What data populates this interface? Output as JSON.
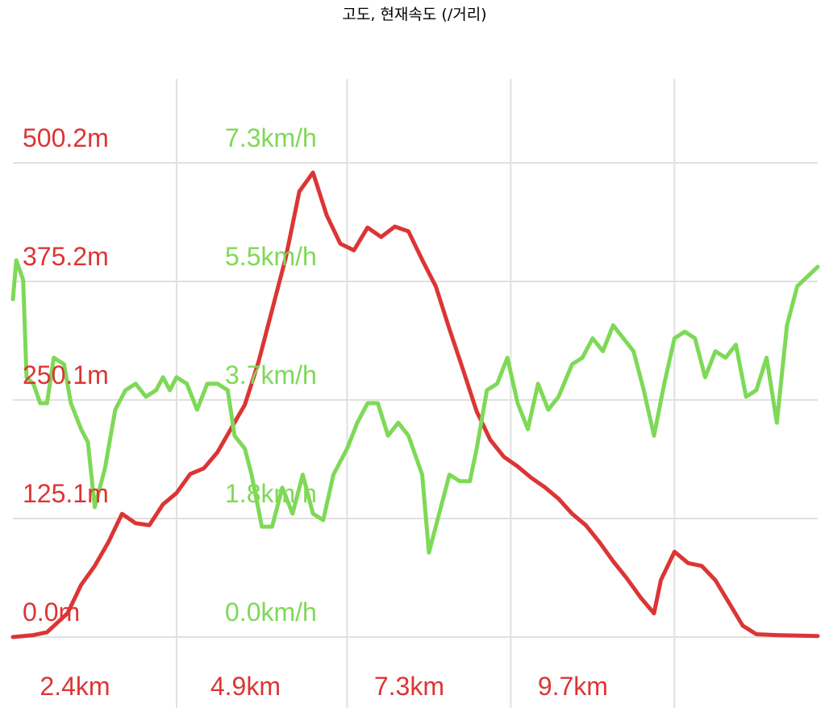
{
  "colors": {
    "elevation": "#dc3535",
    "speed": "#7ed957",
    "grid": "#e0e0e0",
    "title": "#111111"
  },
  "chart_data": {
    "type": "line",
    "title": "고도, 현재속도 (/거리)",
    "xlabel": "",
    "x_unit": "km",
    "xlim": [
      0,
      11.8
    ],
    "x_tick_labels": [
      "2.4km",
      "4.9km",
      "7.3km",
      "9.7km"
    ],
    "x_ticks": [
      2.4,
      4.9,
      7.3,
      9.7
    ],
    "axes": [
      {
        "id": "elevation",
        "unit": "m",
        "ylim": [
          0,
          500.2
        ],
        "tick_labels": [
          "0.0m",
          "125.1m",
          "250.1m",
          "375.2m",
          "500.2m"
        ]
      },
      {
        "id": "speed",
        "unit": "km/h",
        "ylim": [
          0,
          7.3
        ],
        "tick_labels": [
          "0.0km/h",
          "1.8km/h",
          "3.7km/h",
          "5.5km/h",
          "7.3km/h"
        ]
      }
    ],
    "grid": true,
    "legend": "none",
    "series": [
      {
        "axis": "elevation",
        "color": "#dc3535",
        "points": [
          [
            0.0,
            0
          ],
          [
            0.3,
            2
          ],
          [
            0.5,
            5
          ],
          [
            0.8,
            25
          ],
          [
            1.0,
            55
          ],
          [
            1.2,
            75
          ],
          [
            1.4,
            100
          ],
          [
            1.6,
            130
          ],
          [
            1.8,
            120
          ],
          [
            2.0,
            118
          ],
          [
            2.2,
            140
          ],
          [
            2.4,
            152
          ],
          [
            2.6,
            172
          ],
          [
            2.8,
            178
          ],
          [
            3.0,
            195
          ],
          [
            3.2,
            220
          ],
          [
            3.4,
            245
          ],
          [
            3.6,
            290
          ],
          [
            3.8,
            345
          ],
          [
            4.0,
            400
          ],
          [
            4.2,
            470
          ],
          [
            4.4,
            490
          ],
          [
            4.6,
            445
          ],
          [
            4.8,
            415
          ],
          [
            5.0,
            408
          ],
          [
            5.2,
            432
          ],
          [
            5.4,
            422
          ],
          [
            5.6,
            433
          ],
          [
            5.8,
            428
          ],
          [
            6.0,
            398
          ],
          [
            6.2,
            370
          ],
          [
            6.4,
            325
          ],
          [
            6.6,
            282
          ],
          [
            6.8,
            238
          ],
          [
            7.0,
            208
          ],
          [
            7.2,
            190
          ],
          [
            7.4,
            180
          ],
          [
            7.6,
            168
          ],
          [
            7.8,
            158
          ],
          [
            8.0,
            146
          ],
          [
            8.2,
            130
          ],
          [
            8.4,
            118
          ],
          [
            8.6,
            100
          ],
          [
            8.8,
            80
          ],
          [
            9.0,
            62
          ],
          [
            9.2,
            42
          ],
          [
            9.4,
            25
          ],
          [
            9.5,
            60
          ],
          [
            9.7,
            90
          ],
          [
            9.9,
            78
          ],
          [
            10.1,
            75
          ],
          [
            10.3,
            60
          ],
          [
            10.5,
            36
          ],
          [
            10.7,
            12
          ],
          [
            10.9,
            3
          ],
          [
            11.2,
            2
          ],
          [
            11.8,
            1
          ]
        ]
      },
      {
        "axis": "speed",
        "color": "#7ed957",
        "points": [
          [
            0.0,
            5.2
          ],
          [
            0.05,
            5.8
          ],
          [
            0.15,
            5.5
          ],
          [
            0.2,
            4.0
          ],
          [
            0.3,
            3.9
          ],
          [
            0.4,
            3.6
          ],
          [
            0.5,
            3.6
          ],
          [
            0.6,
            4.3
          ],
          [
            0.75,
            4.2
          ],
          [
            0.85,
            3.6
          ],
          [
            1.0,
            3.2
          ],
          [
            1.1,
            3.0
          ],
          [
            1.2,
            2.0
          ],
          [
            1.35,
            2.6
          ],
          [
            1.5,
            3.5
          ],
          [
            1.65,
            3.8
          ],
          [
            1.8,
            3.9
          ],
          [
            1.95,
            3.7
          ],
          [
            2.1,
            3.8
          ],
          [
            2.2,
            4.0
          ],
          [
            2.3,
            3.8
          ],
          [
            2.4,
            4.0
          ],
          [
            2.55,
            3.9
          ],
          [
            2.7,
            3.5
          ],
          [
            2.85,
            3.9
          ],
          [
            3.0,
            3.9
          ],
          [
            3.15,
            3.8
          ],
          [
            3.25,
            3.1
          ],
          [
            3.4,
            2.9
          ],
          [
            3.5,
            2.5
          ],
          [
            3.65,
            1.7
          ],
          [
            3.8,
            1.7
          ],
          [
            3.95,
            2.3
          ],
          [
            4.1,
            1.9
          ],
          [
            4.25,
            2.5
          ],
          [
            4.4,
            1.9
          ],
          [
            4.55,
            1.8
          ],
          [
            4.7,
            2.5
          ],
          [
            4.9,
            2.9
          ],
          [
            5.05,
            3.3
          ],
          [
            5.2,
            3.6
          ],
          [
            5.35,
            3.6
          ],
          [
            5.5,
            3.1
          ],
          [
            5.65,
            3.3
          ],
          [
            5.8,
            3.1
          ],
          [
            6.0,
            2.5
          ],
          [
            6.1,
            1.3
          ],
          [
            6.25,
            1.9
          ],
          [
            6.4,
            2.5
          ],
          [
            6.55,
            2.4
          ],
          [
            6.7,
            2.4
          ],
          [
            6.8,
            2.9
          ],
          [
            6.95,
            3.8
          ],
          [
            7.1,
            3.9
          ],
          [
            7.25,
            4.3
          ],
          [
            7.4,
            3.6
          ],
          [
            7.55,
            3.2
          ],
          [
            7.7,
            3.9
          ],
          [
            7.85,
            3.5
          ],
          [
            8.0,
            3.7
          ],
          [
            8.2,
            4.2
          ],
          [
            8.35,
            4.3
          ],
          [
            8.5,
            4.6
          ],
          [
            8.65,
            4.4
          ],
          [
            8.8,
            4.8
          ],
          [
            8.95,
            4.6
          ],
          [
            9.1,
            4.4
          ],
          [
            9.25,
            3.8
          ],
          [
            9.4,
            3.1
          ],
          [
            9.55,
            3.9
          ],
          [
            9.7,
            4.6
          ],
          [
            9.85,
            4.7
          ],
          [
            10.0,
            4.6
          ],
          [
            10.15,
            4.0
          ],
          [
            10.3,
            4.4
          ],
          [
            10.45,
            4.3
          ],
          [
            10.6,
            4.5
          ],
          [
            10.75,
            3.7
          ],
          [
            10.9,
            3.8
          ],
          [
            11.05,
            4.3
          ],
          [
            11.2,
            3.3
          ],
          [
            11.35,
            4.8
          ],
          [
            11.5,
            5.4
          ],
          [
            11.8,
            5.7
          ]
        ]
      }
    ]
  }
}
